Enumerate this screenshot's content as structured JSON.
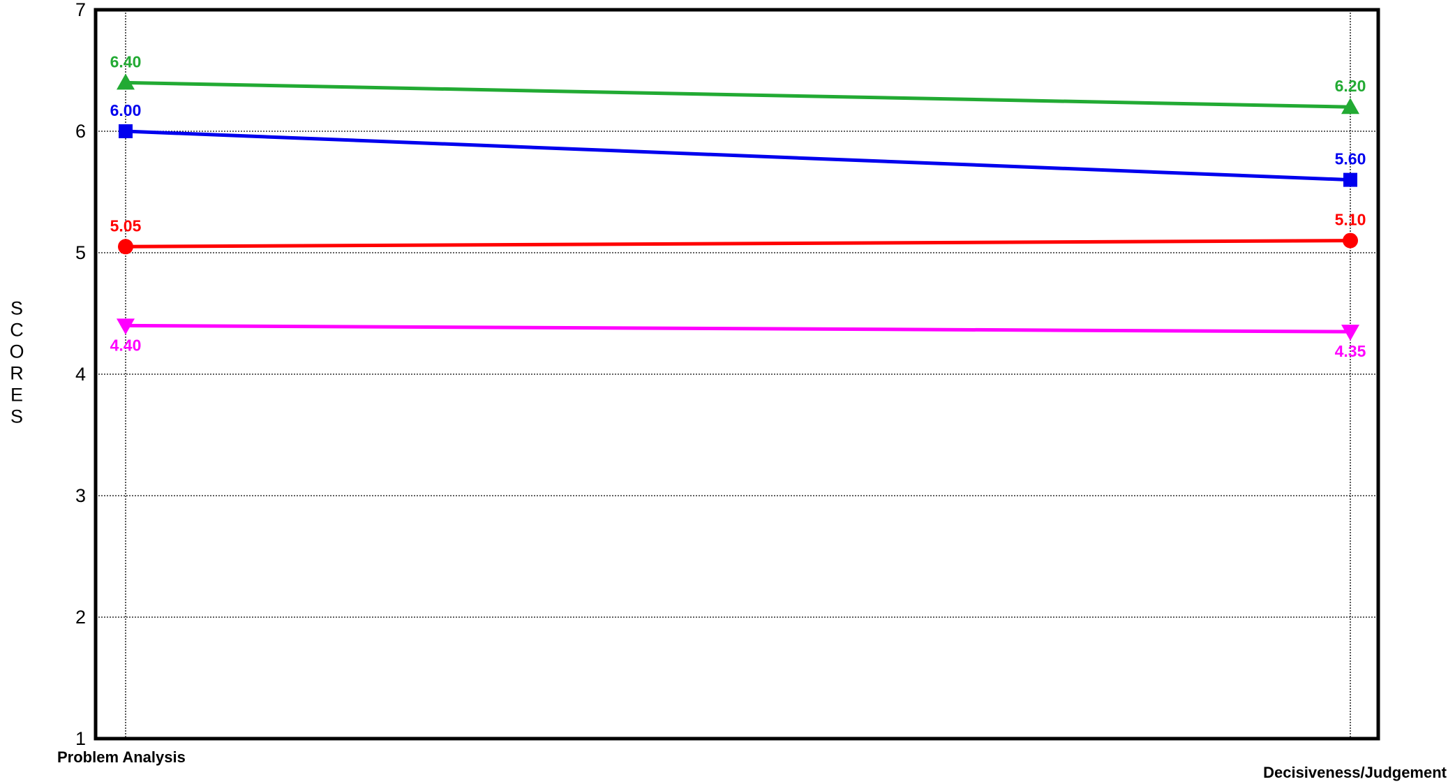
{
  "chart_data": {
    "type": "line",
    "title": "",
    "xlabel": "",
    "ylabel": "SCORES",
    "categories": [
      "Problem Analysis",
      "Decisiveness/Judgement"
    ],
    "ylim": [
      1,
      7
    ],
    "yticks": [
      1,
      2,
      3,
      4,
      5,
      6,
      7
    ],
    "grid": true,
    "legend": "none",
    "series": [
      {
        "values": [
          6.4,
          6.2
        ],
        "labels": [
          "6.40",
          "6.20"
        ],
        "color": "#22aa33",
        "marker": "triangle-up",
        "label_position": "above"
      },
      {
        "values": [
          6.0,
          5.6
        ],
        "labels": [
          "6.00",
          "5.60"
        ],
        "color": "#0000ee",
        "marker": "square",
        "label_position": "above"
      },
      {
        "values": [
          5.05,
          5.1
        ],
        "labels": [
          "5.05",
          "5.10"
        ],
        "color": "#ff0000",
        "marker": "circle",
        "label_position": "above"
      },
      {
        "values": [
          4.4,
          4.35
        ],
        "labels": [
          "4.40",
          "4.35"
        ],
        "color": "#ff00ff",
        "marker": "triangle-down",
        "label_position": "below"
      }
    ]
  }
}
